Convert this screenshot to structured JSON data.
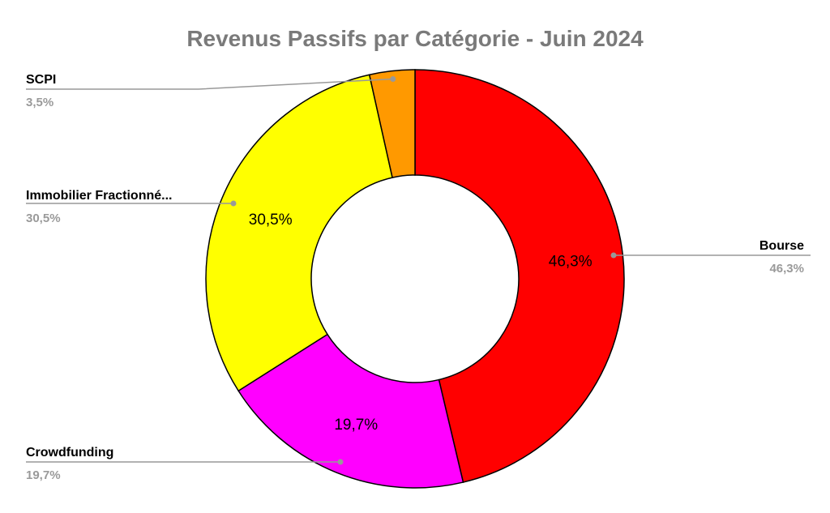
{
  "chart_data": {
    "type": "pie",
    "variant": "donut",
    "title": "Revenus Passifs par Catégorie - Juin 2024",
    "slices": [
      {
        "label": "Bourse",
        "value": 46.3,
        "value_label": "46,3%",
        "inner_label": "46,3%",
        "color": "#ff0000"
      },
      {
        "label": "Crowdfunding",
        "value": 19.7,
        "value_label": "19,7%",
        "inner_label": "19,7%",
        "color": "#ff00ff"
      },
      {
        "label": "Immobilier Fractionné...",
        "value": 30.5,
        "value_label": "30,5%",
        "inner_label": "30,5%",
        "color": "#ffff00"
      },
      {
        "label": "SCPI",
        "value": 3.5,
        "value_label": "3,5%",
        "inner_label": "",
        "color": "#ff9900"
      }
    ],
    "legend": "none",
    "callout_labels": true
  }
}
